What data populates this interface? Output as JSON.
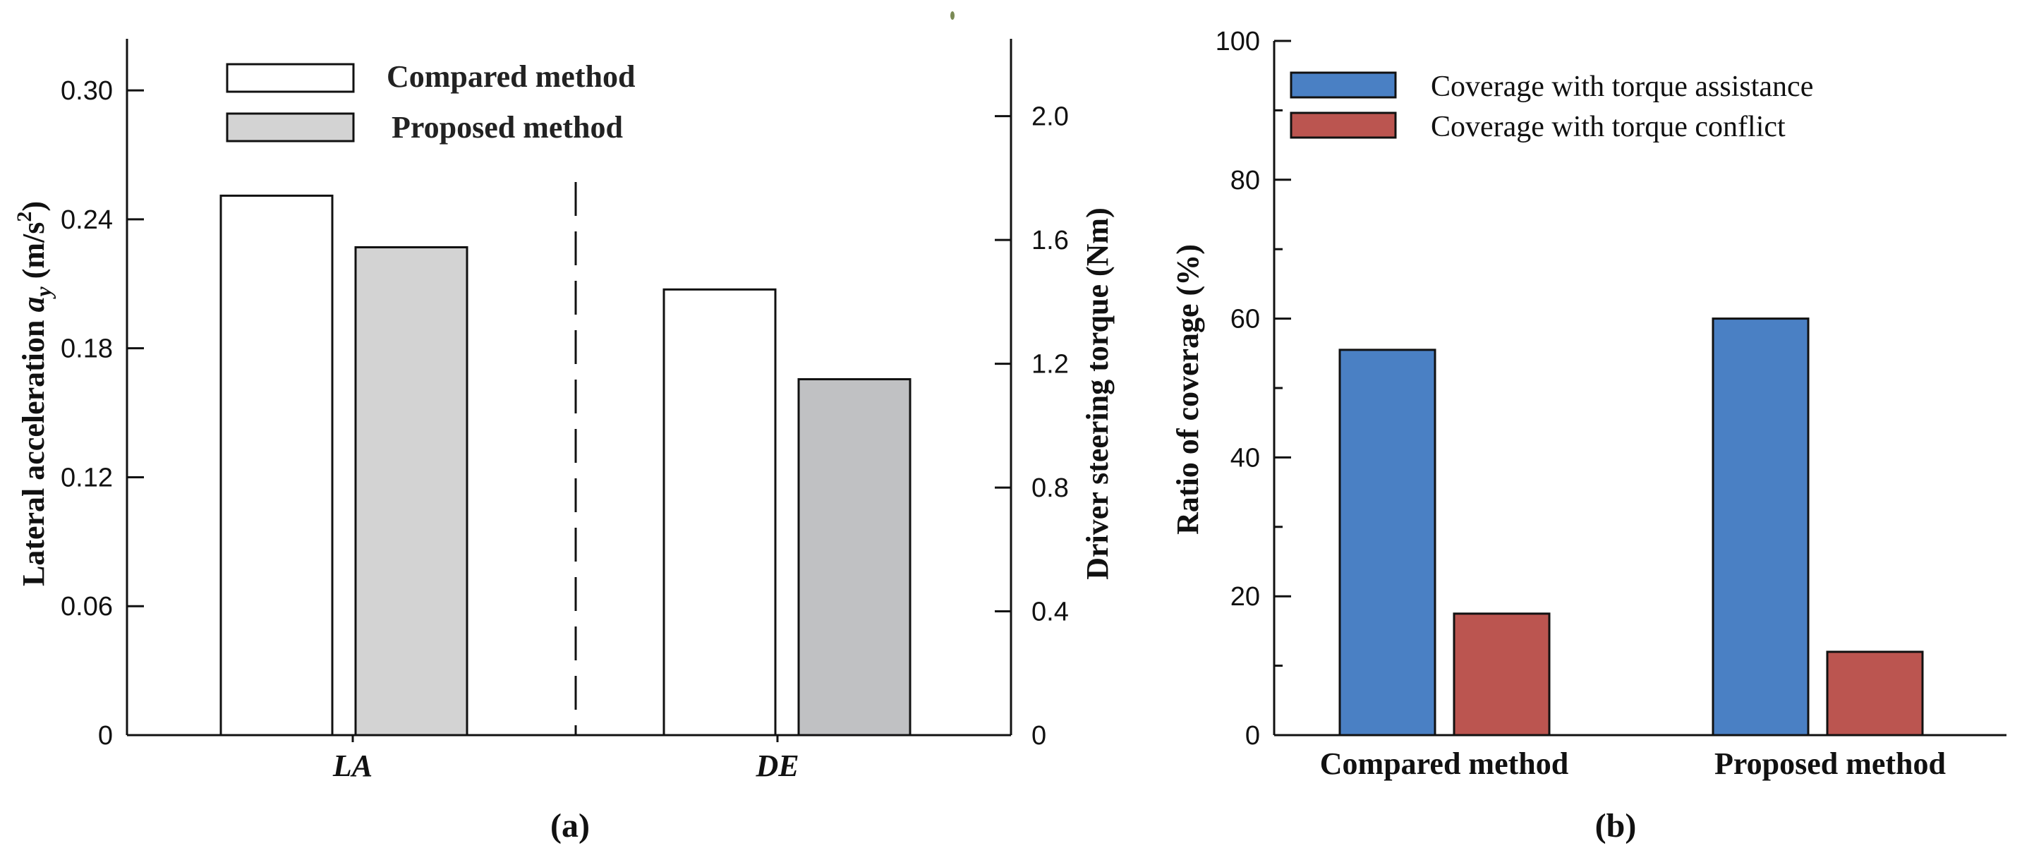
{
  "chart_data": [
    {
      "type": "bar",
      "panel_label": "(a)",
      "categories": [
        "LA",
        "DE"
      ],
      "series": [
        {
          "name": "Compared method",
          "color": "#ffffff",
          "values": [
            0.251,
            1.44
          ]
        },
        {
          "name": "Proposed method",
          "color": "#d3d3d3",
          "values": [
            0.227,
            1.15
          ]
        }
      ],
      "left_axis": {
        "label_main": "Lateral acceleration ",
        "label_var": "a",
        "label_sub": "y",
        "label_unit": " (m/s",
        "label_sup": "2",
        "label_close": ")",
        "ylim": [
          0,
          0.324
        ],
        "ticks": [
          "0",
          "0.06",
          "0.12",
          "0.18",
          "0.24",
          "0.30"
        ],
        "tick_values": [
          0,
          0.06,
          0.12,
          0.18,
          0.24,
          0.3
        ],
        "applies_to": "LA"
      },
      "right_axis": {
        "label": "Driver steering torque (Nm)",
        "ylim": [
          0,
          2.25
        ],
        "ticks": [
          "0",
          "0.4",
          "0.8",
          "1.2",
          "1.6",
          "2.0"
        ],
        "tick_values": [
          0,
          0.4,
          0.8,
          1.2,
          1.6,
          2.0
        ],
        "applies_to": "DE"
      },
      "legend": "top-left"
    },
    {
      "type": "bar",
      "panel_label": "(b)",
      "categories": [
        "Compared method",
        "Proposed method"
      ],
      "series": [
        {
          "name": "Coverage with torque assistance",
          "color": "#4a80c4",
          "values": [
            55.5,
            60.0
          ]
        },
        {
          "name": "Coverage with torque conflict",
          "color": "#bb5550",
          "values": [
            17.5,
            12.0
          ]
        }
      ],
      "ylabel": "Ratio of coverage (%)",
      "ylim": [
        0,
        100
      ],
      "ticks": [
        "0",
        "20",
        "40",
        "60",
        "80",
        "100"
      ],
      "tick_values": [
        0,
        20,
        40,
        60,
        80,
        100
      ],
      "minor_tick_values": [
        10,
        30,
        50,
        70,
        90
      ],
      "legend": "top-left"
    }
  ]
}
